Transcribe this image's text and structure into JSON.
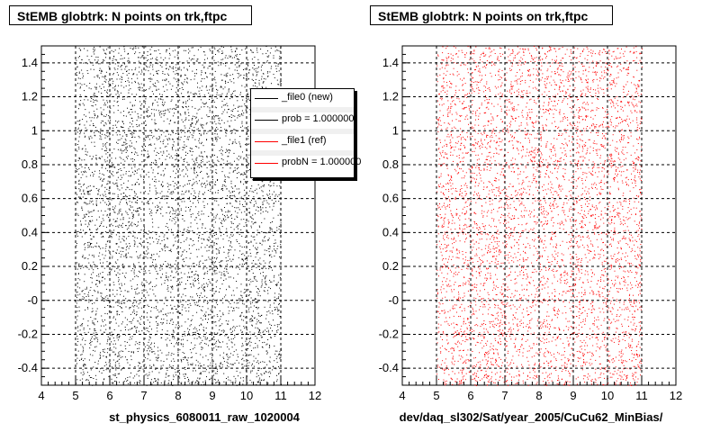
{
  "chart_data": [
    {
      "type": "scatter",
      "title": "StEMB globtrk: N points on trk,ftpc",
      "xlabel": "st_physics_6080011_raw_1020004",
      "ylabel": "",
      "xlim": [
        4,
        12
      ],
      "ylim": [
        -0.5,
        1.5
      ],
      "x_ticks": [
        "4",
        "5",
        "6",
        "7",
        "8",
        "9",
        "10",
        "11",
        "12"
      ],
      "y_ticks": [
        "-0.4",
        "-0.2",
        "-0",
        "0.2",
        "0.4",
        "0.6",
        "0.8",
        "1",
        "1.2",
        "1.4"
      ],
      "grid": true,
      "marker_color": "#000000",
      "x_range_of_points": [
        5,
        11
      ],
      "density": "dense uniform scatter across x 5–11, y -0.5–1.5",
      "legend": {
        "placement": "top-right",
        "entries": [
          {
            "label": "_file0 (new)",
            "color": "#000000"
          },
          {
            "label": "prob = 1.000000",
            "color": "#000000"
          },
          {
            "label": "_file1 (ref)",
            "color": "#ff0000"
          },
          {
            "label": "probN = 1.000000",
            "color": "#ff0000"
          }
        ]
      }
    },
    {
      "type": "scatter",
      "title": "StEMB globtrk: N points on trk,ftpc",
      "xlabel": "dev/daq_sl302/Sat/year_2005/CuCu62_MinBias/",
      "ylabel": "",
      "xlim": [
        4,
        12
      ],
      "ylim": [
        -0.5,
        1.5
      ],
      "x_ticks": [
        "4",
        "5",
        "6",
        "7",
        "8",
        "9",
        "10",
        "11",
        "12"
      ],
      "y_ticks": [
        "-0.4",
        "-0.2",
        "-0",
        "0.2",
        "0.4",
        "0.6",
        "0.8",
        "1",
        "1.2",
        "1.4"
      ],
      "grid": true,
      "marker_color": "#ff0000",
      "x_range_of_points": [
        5,
        11
      ],
      "density": "dense uniform scatter across x 5–11, y -0.5–1.5"
    }
  ]
}
